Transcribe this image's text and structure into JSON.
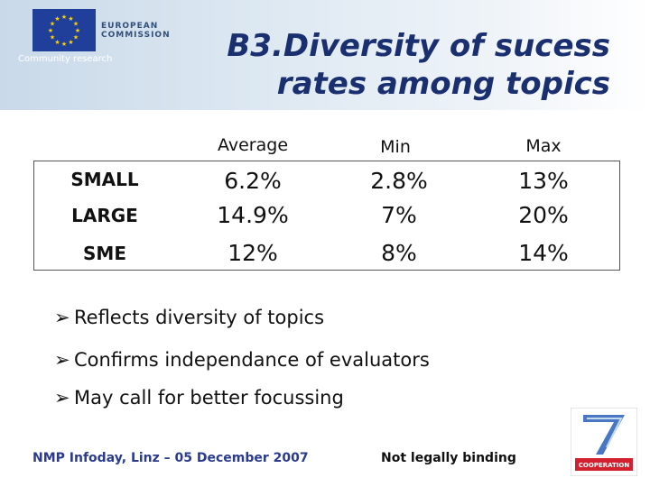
{
  "header": {
    "logo_org": "EUROPEAN COMMISSION",
    "logo_org_line1": "EUROPEAN",
    "logo_org_line2": "COMMISSION",
    "logo_sub": "Community research",
    "title_line1": "B3.Diversity of sucess",
    "title_line2": "rates among topics"
  },
  "table": {
    "columns": [
      "Average",
      "Min",
      "Max"
    ],
    "rows": [
      {
        "label": "SMALL",
        "values": [
          "6.2%",
          "2.8%",
          "13%"
        ]
      },
      {
        "label": "LARGE",
        "values": [
          "14.9%",
          "7%",
          "20%"
        ]
      },
      {
        "label": "SME",
        "values": [
          "12%",
          "8%",
          "14%"
        ]
      }
    ]
  },
  "bullets": [
    "Reflects diversity of topics",
    "Confirms independance of evaluators",
    "May call for better focussing"
  ],
  "footer": {
    "event": "NMP Infoday, Linz – 05 December 2007",
    "disclaimer": "Not legally binding",
    "fp7_label": "COOPERATION"
  },
  "colors": {
    "title": "#1a2f6f",
    "footer_event": "#2a3b8f",
    "eu_blue": "#1f3f9a",
    "eu_star": "#ffd200",
    "fp7_red": "#d3202f"
  }
}
